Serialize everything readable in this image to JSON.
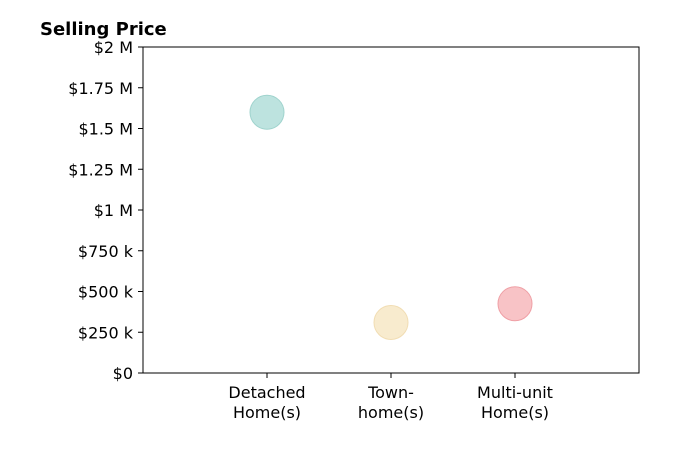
{
  "chart_data": {
    "type": "scatter",
    "title": "Selling Price",
    "xlabel": "",
    "ylabel": "",
    "categories": [
      [
        "Detached",
        "Home(s)"
      ],
      [
        "Town-",
        "home(s)"
      ],
      [
        "Multi-unit",
        "Home(s)"
      ]
    ],
    "y_ticks": [
      {
        "value": 0,
        "label": "$0"
      },
      {
        "value": 250000,
        "label": "$250 k"
      },
      {
        "value": 500000,
        "label": "$500 k"
      },
      {
        "value": 750000,
        "label": "$750 k"
      },
      {
        "value": 1000000,
        "label": "$1 M"
      },
      {
        "value": 1250000,
        "label": "$1.25 M"
      },
      {
        "value": 1500000,
        "label": "$1.5 M"
      },
      {
        "value": 1750000,
        "label": "$1.75 M"
      },
      {
        "value": 2000000,
        "label": "$2 M"
      }
    ],
    "ylim": [
      0,
      2000000
    ],
    "xlim": [
      0,
      4
    ],
    "points": [
      {
        "category": 1,
        "value": 1600000,
        "color": "#bde3df",
        "stroke": "#9fd3cd"
      },
      {
        "category": 2,
        "value": 310000,
        "color": "#f8ebce",
        "stroke": "#f1ddb3"
      },
      {
        "category": 3,
        "value": 425000,
        "color": "#f8c3c6",
        "stroke": "#ef9fa5"
      }
    ],
    "grid": false,
    "legend": "none"
  }
}
